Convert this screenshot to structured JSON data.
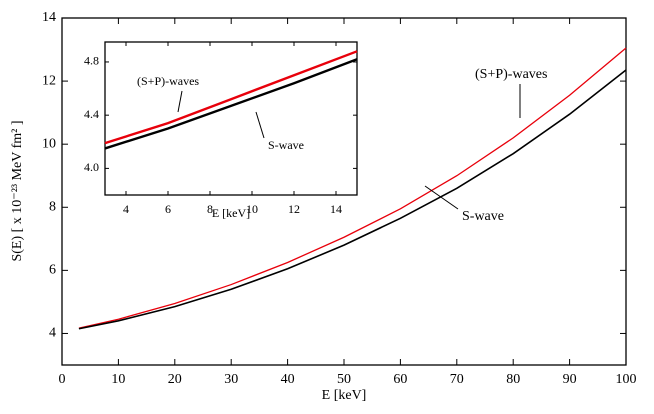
{
  "chart_data": [
    {
      "type": "line",
      "x_label": "E [keV]",
      "y_label": "S(E) [ x 10⁻²³ MeV fm² ]",
      "x": [
        3,
        10,
        20,
        30,
        40,
        50,
        60,
        70,
        80,
        90,
        100
      ],
      "series": [
        {
          "name": "(S+P)-waves",
          "color": "#e8000b",
          "values": [
            4.17,
            4.45,
            4.95,
            5.55,
            6.25,
            7.05,
            7.95,
            9.0,
            10.2,
            11.55,
            13.05
          ]
        },
        {
          "name": "S-wave",
          "color": "#000000",
          "values": [
            4.15,
            4.4,
            4.85,
            5.4,
            6.05,
            6.8,
            7.65,
            8.6,
            9.7,
            10.95,
            12.35
          ]
        }
      ],
      "xlim": [
        0,
        100
      ],
      "xticks": [
        0,
        10,
        20,
        30,
        40,
        50,
        60,
        70,
        80,
        90,
        100
      ],
      "ylim": [
        3,
        14
      ],
      "yticks": [
        4,
        6,
        8,
        10,
        12,
        14
      ]
    },
    {
      "type": "line",
      "x_label": "E [keV]",
      "x": [
        3,
        6,
        9,
        12,
        15
      ],
      "series": [
        {
          "name": "(S+P)-waves",
          "color": "#e8000b",
          "values": [
            4.19,
            4.34,
            4.52,
            4.7,
            4.88
          ]
        },
        {
          "name": "S-wave",
          "color": "#000000",
          "values": [
            4.15,
            4.3,
            4.47,
            4.64,
            4.82
          ]
        }
      ],
      "xlim": [
        3,
        15
      ],
      "xticks": [
        4,
        6,
        8,
        10,
        12,
        14
      ],
      "ylim": [
        3.8,
        4.95
      ],
      "yticks": [
        {
          "value": 4.0,
          "label": "4.0"
        },
        {
          "value": 4.4,
          "label": "4.4"
        },
        {
          "value": 4.8,
          "label": "4.8"
        }
      ]
    }
  ]
}
